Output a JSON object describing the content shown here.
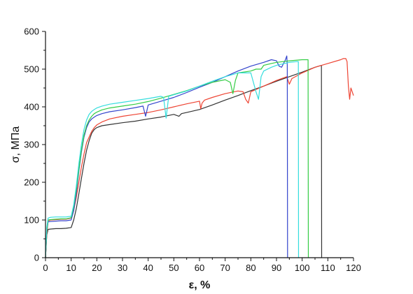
{
  "chart_data": {
    "type": "line",
    "xlabel": "ε, %",
    "ylabel": "σ, МПа",
    "xlim": [
      0,
      120
    ],
    "ylim": [
      0,
      600
    ],
    "x_ticks": [
      0,
      10,
      20,
      30,
      40,
      50,
      60,
      70,
      80,
      90,
      100,
      110,
      120
    ],
    "y_ticks": [
      0,
      100,
      200,
      300,
      400,
      500,
      600
    ],
    "grid": false,
    "legend": "none",
    "series": [
      {
        "color": "#333333",
        "x": [
          0,
          0.5,
          1,
          2,
          4,
          6,
          8,
          10,
          11,
          12,
          13,
          14,
          15,
          16,
          17,
          18,
          19,
          20,
          22,
          25,
          30,
          35,
          40,
          45,
          50,
          52,
          53,
          55,
          60,
          65,
          70,
          75,
          80,
          85,
          90,
          95,
          100,
          105,
          107.5,
          107.6
        ],
        "y": [
          0,
          60,
          75,
          76,
          77,
          77,
          78,
          80,
          100,
          130,
          170,
          210,
          250,
          285,
          310,
          330,
          340,
          345,
          350,
          353,
          358,
          362,
          368,
          373,
          380,
          375,
          382,
          385,
          393,
          405,
          418,
          430,
          443,
          455,
          468,
          480,
          492,
          505,
          510,
          0
        ]
      },
      {
        "color": "#ee4433",
        "x": [
          0,
          0.5,
          1,
          2,
          4,
          6,
          8,
          10,
          11,
          12,
          13,
          14,
          15,
          16,
          17,
          18,
          19,
          20,
          22,
          25,
          30,
          35,
          40,
          45,
          50,
          55,
          60,
          60.5,
          61,
          62,
          65,
          70,
          75,
          77,
          78,
          79,
          80,
          85,
          90,
          94,
          95,
          96,
          100,
          105,
          110,
          115,
          116,
          117,
          117.5,
          118,
          118.5,
          119,
          120
        ],
        "y": [
          0,
          60,
          98,
          100,
          101,
          102,
          102,
          105,
          125,
          160,
          200,
          240,
          275,
          305,
          320,
          335,
          345,
          352,
          360,
          368,
          375,
          380,
          385,
          392,
          400,
          408,
          415,
          395,
          410,
          418,
          425,
          435,
          442,
          440,
          420,
          410,
          440,
          455,
          470,
          480,
          460,
          475,
          490,
          505,
          515,
          525,
          528,
          528,
          520,
          455,
          420,
          450,
          430
        ]
      },
      {
        "color": "#3344cc",
        "x": [
          0,
          0.5,
          1,
          2,
          4,
          6,
          8,
          10,
          11,
          12,
          13,
          14,
          15,
          16,
          17,
          18,
          19,
          20,
          22,
          25,
          30,
          35,
          38,
          39,
          40,
          45,
          50,
          55,
          60,
          65,
          70,
          75,
          80,
          85,
          88,
          90,
          91,
          92,
          93.5,
          94,
          94.2,
          94.3
        ],
        "y": [
          0,
          70,
          95,
          96,
          97,
          98,
          98,
          100,
          125,
          170,
          230,
          280,
          320,
          345,
          360,
          368,
          373,
          377,
          382,
          387,
          392,
          398,
          402,
          375,
          405,
          415,
          425,
          438,
          452,
          465,
          480,
          495,
          508,
          518,
          525,
          522,
          508,
          505,
          525,
          535,
          510,
          0
        ]
      },
      {
        "color": "#33cc44",
        "x": [
          0,
          0.5,
          1,
          2,
          4,
          6,
          8,
          10,
          11,
          12,
          13,
          14,
          15,
          16,
          17,
          18,
          19,
          20,
          22,
          25,
          30,
          35,
          40,
          45,
          50,
          55,
          60,
          65,
          70,
          72,
          73,
          74,
          75,
          80,
          82,
          84,
          85,
          88,
          90,
          95,
          100,
          102,
          102.3,
          102.4
        ],
        "y": [
          0,
          70,
          100,
          101,
          102,
          103,
          103,
          106,
          135,
          180,
          235,
          285,
          325,
          350,
          365,
          375,
          382,
          386,
          392,
          397,
          402,
          407,
          414,
          423,
          433,
          443,
          455,
          465,
          472,
          465,
          435,
          470,
          490,
          495,
          500,
          500,
          510,
          515,
          518,
          522,
          525,
          525,
          525,
          0
        ]
      },
      {
        "color": "#33dddd",
        "x": [
          0,
          0.5,
          1,
          2,
          4,
          6,
          8,
          10,
          11,
          12,
          13,
          14,
          15,
          16,
          17,
          18,
          19,
          20,
          22,
          25,
          30,
          35,
          40,
          45,
          46,
          47,
          48,
          50,
          55,
          60,
          65,
          70,
          75,
          80,
          82,
          83,
          84,
          85,
          88,
          90,
          95,
          98,
          98.5,
          98.6
        ],
        "y": [
          0,
          80,
          105,
          107,
          108,
          108,
          108,
          110,
          140,
          190,
          250,
          300,
          340,
          365,
          380,
          388,
          393,
          397,
          402,
          407,
          412,
          417,
          422,
          428,
          425,
          370,
          428,
          432,
          442,
          455,
          468,
          480,
          490,
          490,
          440,
          420,
          480,
          495,
          505,
          510,
          518,
          520,
          520,
          0
        ]
      }
    ]
  }
}
